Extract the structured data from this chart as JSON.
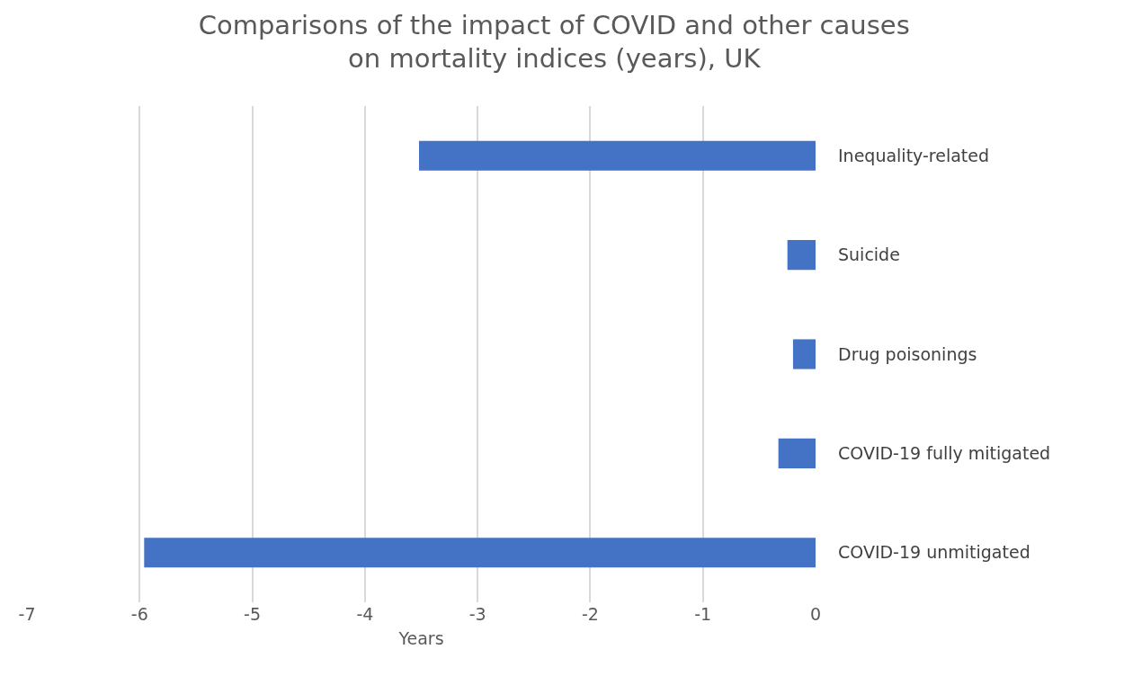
{
  "chart_data": {
    "type": "bar",
    "orientation": "horizontal",
    "title": "Comparisons of the impact of COVID and other causes\non mortality indices (years), UK",
    "xlabel": "Years",
    "categories": [
      "Inequality-related",
      "Suicide",
      "Drug poisonings",
      "COVID-19 fully mitigated",
      "COVID-19 unmitigated"
    ],
    "values": [
      -3.52,
      -0.25,
      -0.2,
      -0.33,
      -5.96
    ],
    "color": "#4472c4",
    "xlim": [
      -7,
      0
    ],
    "xticks": [
      -7,
      -6,
      -5,
      -4,
      -3,
      -2,
      -1,
      0
    ],
    "grid": "x"
  }
}
